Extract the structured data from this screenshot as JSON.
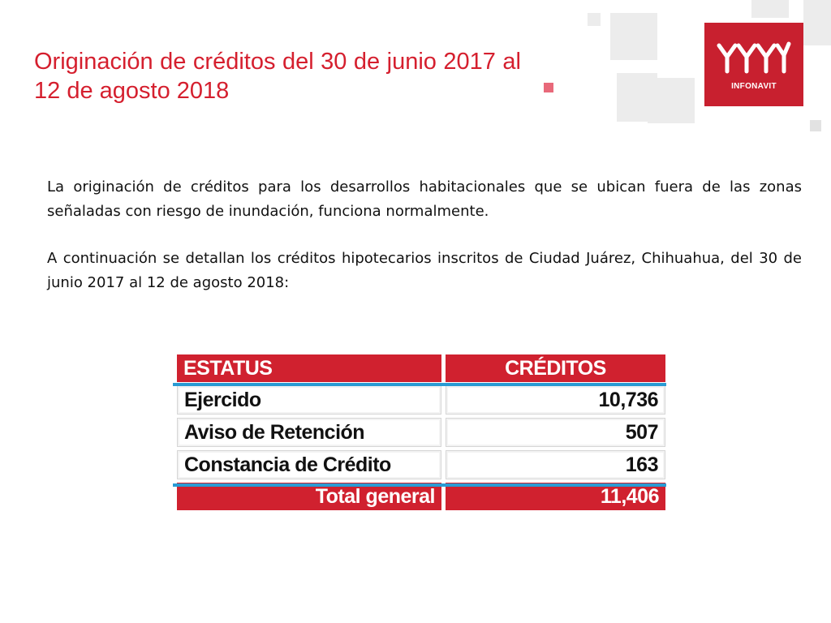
{
  "title": "Originación de créditos del 30 de junio 2017 al 12 de agosto 2018",
  "logo": {
    "icon": "infonavit-logo-icon",
    "text": "INFONAVIT"
  },
  "paragraphs": [
    "La originación de créditos para los desarrollos habitacionales que se ubican fuera de las zonas señaladas con riesgo de inundación, funciona normalmente.",
    "A continuación se detallan los créditos hipotecarios inscritos de Ciudad Juárez, Chihuahua, del 30 de junio 2017 al 12 de agosto 2018:"
  ],
  "table": {
    "headers": [
      "ESTATUS",
      "CRÉDITOS"
    ],
    "rows": [
      {
        "status": "Ejercido",
        "credits": "10,736"
      },
      {
        "status": "Aviso de Retención",
        "credits": "507"
      },
      {
        "status": "Constancia de Crédito",
        "credits": "163"
      }
    ],
    "total": {
      "label": "Total general",
      "value": "11,406"
    }
  },
  "colors": {
    "brand_red": "#d0212f",
    "title_red": "#d51f2e",
    "accent_blue": "#2a9bd3"
  }
}
